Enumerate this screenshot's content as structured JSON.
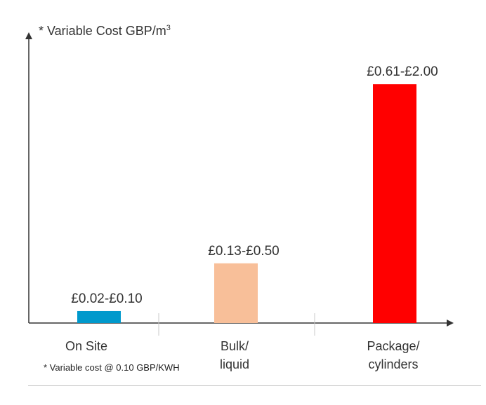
{
  "chart_data": {
    "type": "bar",
    "ylabel_text": "* Variable Cost GBP/m",
    "ylabel_sup": "3",
    "categories": [
      [
        "On Site"
      ],
      [
        "Bulk/",
        "liquid"
      ],
      [
        "Package/",
        "cylinders"
      ]
    ],
    "values": [
      0.1,
      0.5,
      2.0
    ],
    "range_low": [
      0.02,
      0.13,
      0.61
    ],
    "data_labels": [
      "£0.02-£0.10",
      "£0.13-£0.50",
      "£0.61-£2.00"
    ],
    "colors": [
      "#0099cc",
      "#f8bf99",
      "#ff0000"
    ],
    "ylim": [
      0,
      2.4
    ],
    "grid": false,
    "y_ticks_shown": false
  },
  "footnote": "* Variable cost @ 0.10 GBP/KWH",
  "colors": {
    "axis": "#333333",
    "text": "#333333",
    "separator": "#c8c8c8"
  }
}
